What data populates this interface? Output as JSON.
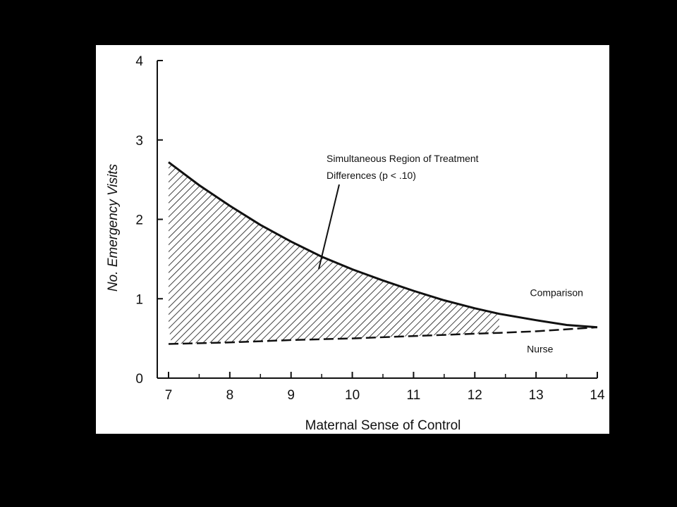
{
  "chart_data": {
    "type": "line",
    "xlabel": "Maternal Sense of Control",
    "ylabel": "No. Emergency Visits",
    "xlim": [
      7,
      14
    ],
    "ylim": [
      0,
      4
    ],
    "x_ticks": [
      "7",
      "8",
      "9",
      "10",
      "11",
      "12",
      "13",
      "14"
    ],
    "y_ticks": [
      "0",
      "1",
      "2",
      "3",
      "4"
    ],
    "minor_x_ticks": true,
    "grid": false,
    "series": [
      {
        "name": "Comparison",
        "line_style": "solid",
        "x": [
          7,
          7.5,
          8,
          8.5,
          9,
          9.5,
          10,
          10.5,
          11,
          11.5,
          12,
          12.4,
          13,
          13.5,
          14
        ],
        "y": [
          2.72,
          2.43,
          2.17,
          1.93,
          1.72,
          1.53,
          1.37,
          1.23,
          1.1,
          0.98,
          0.88,
          0.81,
          0.73,
          0.67,
          0.64
        ]
      },
      {
        "name": "Nurse",
        "line_style": "dashed",
        "x": [
          7,
          8,
          9,
          10,
          11,
          12,
          12.4,
          13,
          14
        ],
        "y": [
          0.43,
          0.45,
          0.48,
          0.5,
          0.53,
          0.56,
          0.57,
          0.59,
          0.64
        ]
      }
    ],
    "shaded_region": {
      "x_start": 7,
      "x_end": 12.4,
      "pattern": "diagonal-hatch"
    },
    "annotations": [
      {
        "line1": "Simultaneous Region of Treatment",
        "line2": "Differences (p < .10)"
      }
    ]
  },
  "colors": {
    "background": "#000000",
    "panel": "#ffffff",
    "ink": "#111111"
  }
}
